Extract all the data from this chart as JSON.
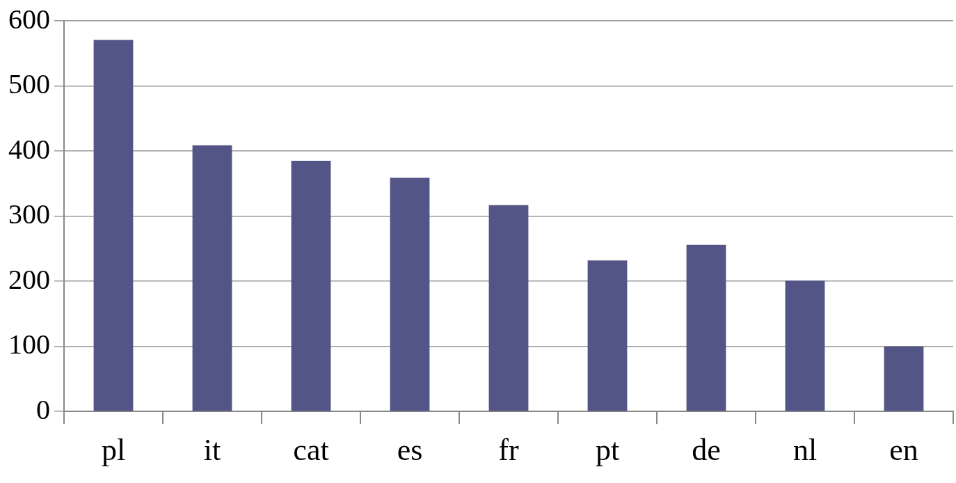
{
  "chart_data": {
    "type": "bar",
    "categories": [
      "pl",
      "it",
      "cat",
      "es",
      "fr",
      "pt",
      "de",
      "nl",
      "en"
    ],
    "values": [
      571,
      409,
      385,
      359,
      317,
      232,
      256,
      201,
      100
    ],
    "color": "#545587",
    "ylim": [
      0,
      600
    ],
    "yticks": [
      0,
      100,
      200,
      300,
      400,
      500,
      600
    ],
    "grid": "y",
    "legend": false
  }
}
